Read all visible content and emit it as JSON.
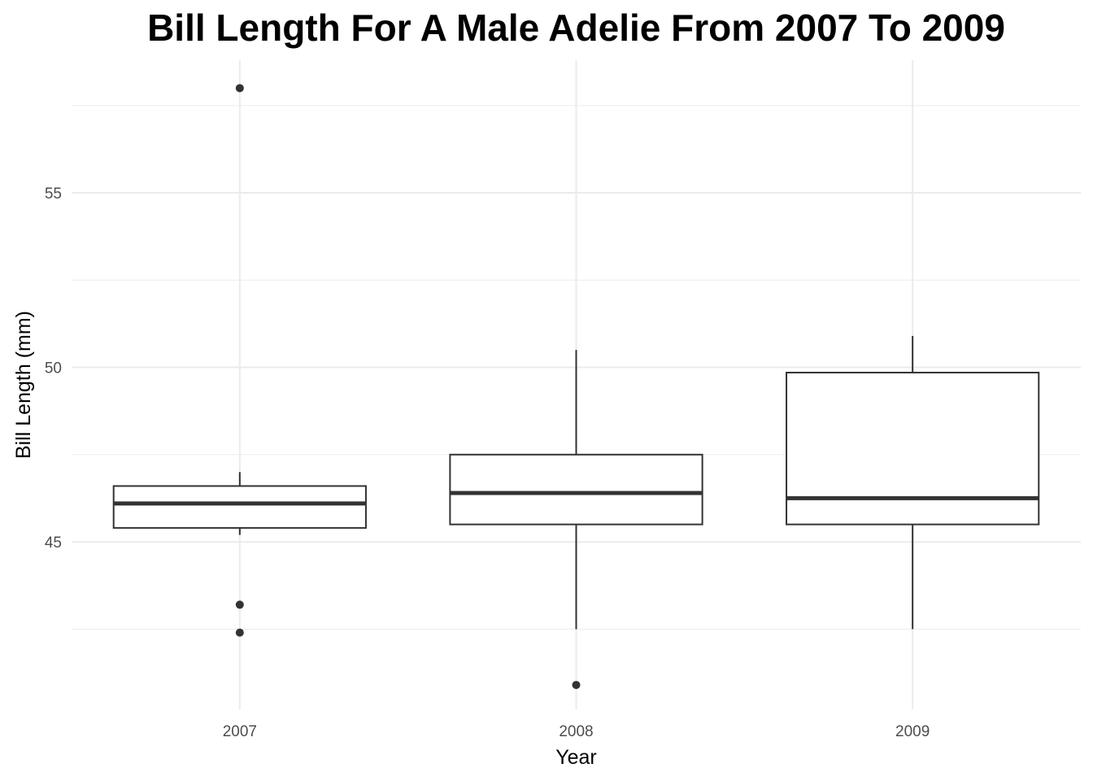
{
  "chart_data": {
    "type": "boxplot",
    "title": "Bill Length For A Male Adelie From 2007 To 2009",
    "xlabel": "Year",
    "ylabel": "Bill Length (mm)",
    "ylim": [
      40.2,
      58.8
    ],
    "yticks": [
      45,
      50,
      55
    ],
    "grid": true,
    "categories": [
      "2007",
      "2008",
      "2009"
    ],
    "boxes": [
      {
        "category": "2007",
        "whisker_low": 45.2,
        "q1": 45.4,
        "median": 46.1,
        "q3": 46.6,
        "whisker_high": 47.0,
        "outliers": [
          58.0,
          43.2,
          42.4
        ]
      },
      {
        "category": "2008",
        "whisker_low": 42.5,
        "q1": 45.5,
        "median": 46.4,
        "q3": 47.5,
        "whisker_high": 50.5,
        "outliers": [
          40.9
        ]
      },
      {
        "category": "2009",
        "whisker_low": 42.5,
        "q1": 45.5,
        "median": 46.25,
        "q3": 49.85,
        "whisker_high": 50.9,
        "outliers": []
      }
    ],
    "colors": {
      "box_line": "#333333",
      "grid": "#ebebeb",
      "tick_text": "#4d4d4d",
      "background": "#ffffff"
    }
  }
}
